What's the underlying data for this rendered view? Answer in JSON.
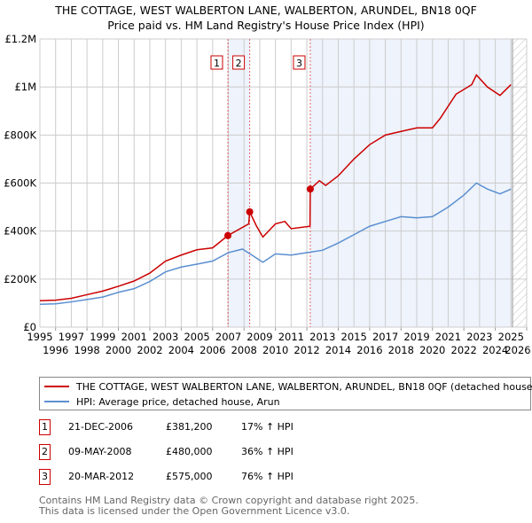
{
  "chart_data": {
    "type": "line",
    "title": "THE COTTAGE, WEST WALBERTON LANE, WALBERTON, ARUNDEL, BN18 0QF",
    "subtitle": "Price paid vs. HM Land Registry's House Price Index (HPI)",
    "xlim": [
      1995,
      2026
    ],
    "ylim": [
      0,
      1200000
    ],
    "x_ticks": [
      "1995",
      "1996",
      "1997",
      "1998",
      "1999",
      "2000",
      "2001",
      "2002",
      "2003",
      "2004",
      "2005",
      "2006",
      "2007",
      "2008",
      "2009",
      "2010",
      "2011",
      "2012",
      "2013",
      "2014",
      "2015",
      "2016",
      "2017",
      "2018",
      "2019",
      "2020",
      "2021",
      "2022",
      "2023",
      "2024",
      "2025",
      "2026"
    ],
    "y_ticks": [
      {
        "v": 0,
        "label": "£0"
      },
      {
        "v": 200000,
        "label": "£200K"
      },
      {
        "v": 400000,
        "label": "£400K"
      },
      {
        "v": 600000,
        "label": "£600K"
      },
      {
        "v": 800000,
        "label": "£800K"
      },
      {
        "v": 1000000,
        "label": "£1M"
      },
      {
        "v": 1200000,
        "label": "£1.2M"
      }
    ],
    "series": [
      {
        "name": "THE COTTAGE, WEST WALBERTON LANE, WALBERTON, ARUNDEL, BN18 0QF (detached house)",
        "color": "#cc0000",
        "points": [
          [
            1995,
            110000
          ],
          [
            1996,
            112000
          ],
          [
            1997,
            120000
          ],
          [
            1998,
            135000
          ],
          [
            1999,
            150000
          ],
          [
            2000,
            170000
          ],
          [
            2001,
            192000
          ],
          [
            2002,
            225000
          ],
          [
            2003,
            275000
          ],
          [
            2004,
            300000
          ],
          [
            2005,
            322000
          ],
          [
            2006,
            330000
          ],
          [
            2006.97,
            381200
          ],
          [
            2008.3,
            430000
          ],
          [
            2008.36,
            480000
          ],
          [
            2008.8,
            420000
          ],
          [
            2009.2,
            375000
          ],
          [
            2010,
            430000
          ],
          [
            2010.6,
            440000
          ],
          [
            2011,
            410000
          ],
          [
            2012.2,
            420000
          ],
          [
            2012.22,
            575000
          ],
          [
            2012.8,
            610000
          ],
          [
            2013.2,
            590000
          ],
          [
            2014,
            630000
          ],
          [
            2015,
            700000
          ],
          [
            2016,
            760000
          ],
          [
            2017,
            800000
          ],
          [
            2018,
            815000
          ],
          [
            2019,
            830000
          ],
          [
            2020,
            830000
          ],
          [
            2020.5,
            870000
          ],
          [
            2021.5,
            970000
          ],
          [
            2022.5,
            1010000
          ],
          [
            2022.8,
            1050000
          ],
          [
            2023.5,
            1000000
          ],
          [
            2024.3,
            965000
          ],
          [
            2025,
            1010000
          ]
        ]
      },
      {
        "name": "HPI: Average price, detached house, Arun",
        "color": "#5b8fd0",
        "points": [
          [
            1995,
            95000
          ],
          [
            1996,
            97000
          ],
          [
            1997,
            105000
          ],
          [
            1998,
            115000
          ],
          [
            1999,
            125000
          ],
          [
            2000,
            145000
          ],
          [
            2001,
            160000
          ],
          [
            2002,
            190000
          ],
          [
            2003,
            230000
          ],
          [
            2004,
            250000
          ],
          [
            2005,
            262000
          ],
          [
            2006,
            275000
          ],
          [
            2007,
            310000
          ],
          [
            2007.9,
            325000
          ],
          [
            2008.5,
            300000
          ],
          [
            2009.2,
            270000
          ],
          [
            2010,
            305000
          ],
          [
            2011,
            300000
          ],
          [
            2012,
            310000
          ],
          [
            2013,
            320000
          ],
          [
            2014,
            350000
          ],
          [
            2015,
            385000
          ],
          [
            2016,
            420000
          ],
          [
            2017,
            440000
          ],
          [
            2018,
            460000
          ],
          [
            2019,
            455000
          ],
          [
            2020,
            460000
          ],
          [
            2021,
            500000
          ],
          [
            2022,
            550000
          ],
          [
            2022.8,
            600000
          ],
          [
            2023.5,
            575000
          ],
          [
            2024.3,
            555000
          ],
          [
            2025,
            575000
          ]
        ]
      }
    ],
    "sales": [
      {
        "n": "1",
        "x": 2006.97,
        "date": "21-DEC-2006",
        "price": 381200,
        "price_label": "£381,200",
        "hpi": "17% ↑ HPI"
      },
      {
        "n": "2",
        "x": 2008.36,
        "date": "09-MAY-2008",
        "price": 480000,
        "price_label": "£480,000",
        "hpi": "36% ↑ HPI"
      },
      {
        "n": "3",
        "x": 2012.22,
        "date": "20-MAR-2012",
        "price": 575000,
        "price_label": "£575,000",
        "hpi": "76% ↑ HPI"
      }
    ],
    "shaded_ranges": [
      [
        2006.97,
        2008.36
      ],
      [
        2012.22,
        2025.1
      ]
    ],
    "forecast_hatch_from": 2025.1,
    "legend_placement": "below"
  },
  "title": "THE COTTAGE, WEST WALBERTON LANE, WALBERTON, ARUNDEL, BN18 0QF",
  "subtitle": "Price paid vs. HM Land Registry's House Price Index (HPI)",
  "footer": [
    "Contains HM Land Registry data © Crown copyright and database right 2025.",
    "This data is licensed under the Open Government Licence v3.0."
  ]
}
